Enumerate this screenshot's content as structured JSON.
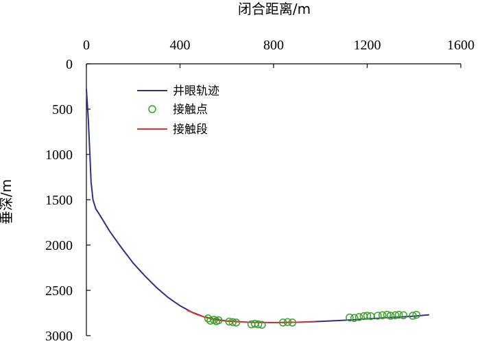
{
  "chart_data": {
    "type": "line",
    "xlabel": "闭合距离/m",
    "ylabel": "垂深/m",
    "xlim": [
      0,
      1600
    ],
    "ylim": [
      3000,
      0
    ],
    "x_axis_position": "top",
    "y_inverted": true,
    "x_ticks": [
      "0",
      "400",
      "800",
      "1200",
      "1600"
    ],
    "y_ticks": [
      "0",
      "500",
      "1000",
      "1500",
      "2000",
      "2500",
      "3000"
    ],
    "grid": false,
    "legend_position": "top-left",
    "legend": [
      {
        "label": "井眼轨迹",
        "kind": "line",
        "color": "#2e2e8c"
      },
      {
        "label": "接触点",
        "kind": "marker",
        "color": "#3aa02a"
      },
      {
        "label": "接触段",
        "kind": "line",
        "color": "#e8302a"
      }
    ],
    "series": [
      {
        "name": "井眼轨迹",
        "style": "line",
        "color": "#2e2e8c",
        "points": [
          [
            0,
            280
          ],
          [
            8,
            600
          ],
          [
            15,
            1000
          ],
          [
            20,
            1300
          ],
          [
            28,
            1500
          ],
          [
            40,
            1600
          ],
          [
            60,
            1680
          ],
          [
            100,
            1850
          ],
          [
            150,
            2030
          ],
          [
            200,
            2200
          ],
          [
            250,
            2340
          ],
          [
            300,
            2470
          ],
          [
            350,
            2580
          ],
          [
            400,
            2670
          ],
          [
            450,
            2740
          ],
          [
            500,
            2790
          ],
          [
            550,
            2820
          ],
          [
            600,
            2838
          ],
          [
            700,
            2853
          ],
          [
            800,
            2856
          ],
          [
            900,
            2852
          ],
          [
            1000,
            2843
          ],
          [
            1100,
            2830
          ],
          [
            1200,
            2815
          ],
          [
            1300,
            2800
          ],
          [
            1400,
            2785
          ],
          [
            1465,
            2770
          ]
        ]
      },
      {
        "name": "接触段",
        "style": "line",
        "color": "#e8302a",
        "points": [
          [
            430,
            2720
          ],
          [
            470,
            2765
          ],
          [
            510,
            2800
          ],
          [
            560,
            2830
          ],
          [
            620,
            2845
          ],
          [
            700,
            2853
          ],
          [
            800,
            2856
          ],
          [
            900,
            2852
          ],
          [
            980,
            2848
          ]
        ]
      },
      {
        "name": "接触点",
        "style": "scatter",
        "color": "#3aa02a",
        "points": [
          [
            520,
            2810
          ],
          [
            530,
            2835
          ],
          [
            545,
            2825
          ],
          [
            555,
            2840
          ],
          [
            565,
            2830
          ],
          [
            610,
            2845
          ],
          [
            625,
            2850
          ],
          [
            640,
            2855
          ],
          [
            705,
            2875
          ],
          [
            720,
            2870
          ],
          [
            735,
            2875
          ],
          [
            750,
            2880
          ],
          [
            840,
            2855
          ],
          [
            860,
            2850
          ],
          [
            880,
            2855
          ],
          [
            1125,
            2800
          ],
          [
            1145,
            2805
          ],
          [
            1165,
            2795
          ],
          [
            1185,
            2785
          ],
          [
            1200,
            2780
          ],
          [
            1215,
            2785
          ],
          [
            1245,
            2780
          ],
          [
            1265,
            2775
          ],
          [
            1285,
            2770
          ],
          [
            1300,
            2780
          ],
          [
            1320,
            2775
          ],
          [
            1335,
            2770
          ],
          [
            1355,
            2775
          ],
          [
            1395,
            2780
          ],
          [
            1410,
            2770
          ]
        ]
      }
    ]
  }
}
